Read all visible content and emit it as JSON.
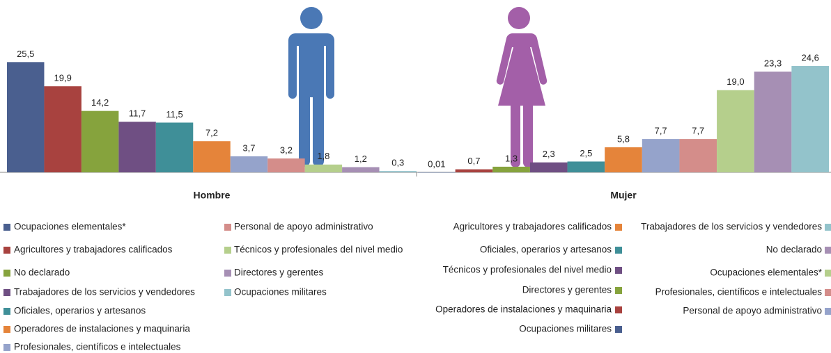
{
  "chart_data": [
    {
      "type": "bar",
      "title": "Hombre",
      "categories": [
        "Ocupaciones elementales*",
        "Agricultores y trabajadores calificados",
        "No declarado",
        "Trabajadores de los servicios y vendedores",
        "Oficiales, operarios y artesanos",
        "Operadores de instalaciones y maquinaria",
        "Profesionales, científicos e intelectuales",
        "Personal de apoyo administrativo",
        "Técnicos y profesionales del nivel medio",
        "Directores y gerentes",
        "Ocupaciones militares"
      ],
      "values": [
        25.5,
        19.9,
        14.2,
        11.7,
        11.5,
        7.2,
        3.7,
        3.2,
        1.8,
        1.2,
        0.3
      ],
      "value_labels": [
        "25,5",
        "19,9",
        "14,2",
        "11,7",
        "11,5",
        "7,2",
        "3,7",
        "3,2",
        "1,8",
        "1,2",
        "0,3"
      ],
      "colors": [
        "#4a5f8f",
        "#a8423f",
        "#86a33d",
        "#6f4f83",
        "#3f8f98",
        "#e5843a",
        "#95a3cb",
        "#d48d8a",
        "#b5cf8c",
        "#a68fb4",
        "#93c3cb"
      ],
      "ylim": [
        0,
        27
      ]
    },
    {
      "type": "bar",
      "title": "Mujer",
      "categories": [
        "Ocupaciones militares",
        "Operadores de instalaciones y maquinaria",
        "Directores y gerentes",
        "Técnicos y profesionales del nivel medio",
        "Oficiales, operarios y artesanos",
        "Agricultores y trabajadores calificados",
        "Personal de apoyo administrativo",
        "Profesionales, científicos e intelectuales",
        "Ocupaciones elementales*",
        "No declarado",
        "Trabajadores de los servicios y vendedores"
      ],
      "values": [
        0.01,
        0.7,
        1.3,
        2.3,
        2.5,
        5.8,
        7.7,
        7.7,
        19.0,
        23.3,
        24.6
      ],
      "value_labels": [
        "0,01",
        "0,7",
        "1,3",
        "2,3",
        "2,5",
        "5,8",
        "7,7",
        "7,7",
        "19,0",
        "23,3",
        "24,6"
      ],
      "colors": [
        "#4a5f8f",
        "#a8423f",
        "#86a33d",
        "#6f4f83",
        "#3f8f98",
        "#e5843a",
        "#95a3cb",
        "#d48d8a",
        "#b5cf8c",
        "#a68fb4",
        "#93c3cb"
      ],
      "ylim": [
        0,
        27
      ]
    }
  ]
}
